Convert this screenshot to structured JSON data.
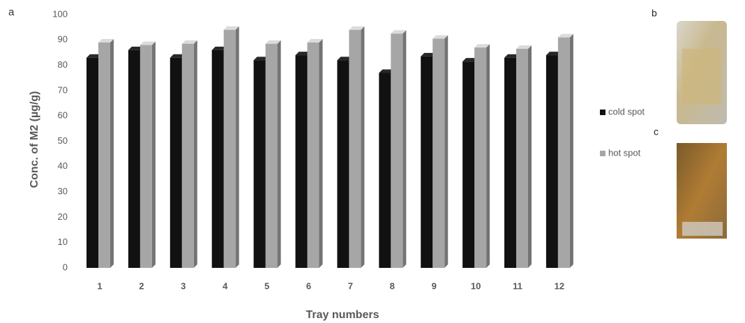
{
  "panel_labels": [
    "a",
    "b",
    "c"
  ],
  "chart_data": {
    "type": "bar3d",
    "xlabel": "Tray numbers",
    "ylabel": "Conc. of M2 (µg/g)",
    "categories": [
      "1",
      "2",
      "3",
      "4",
      "5",
      "6",
      "7",
      "8",
      "9",
      "10",
      "11",
      "12"
    ],
    "series": [
      {
        "name": "cold spot",
        "color": "#111111",
        "values": [
          83,
          86,
          83,
          86,
          82,
          84,
          82,
          77,
          83.5,
          81.5,
          83,
          84
        ]
      },
      {
        "name": "hot spot",
        "color": "#a6a6a6",
        "values": [
          89,
          88,
          88.5,
          94,
          88.5,
          89,
          94,
          92.5,
          90.5,
          87,
          86.5,
          91
        ]
      }
    ],
    "ylim": [
      0,
      100
    ],
    "yticks": [
      0,
      10,
      20,
      30,
      40,
      50,
      60,
      70,
      80,
      90,
      100
    ],
    "grid": false,
    "legend": "right"
  }
}
